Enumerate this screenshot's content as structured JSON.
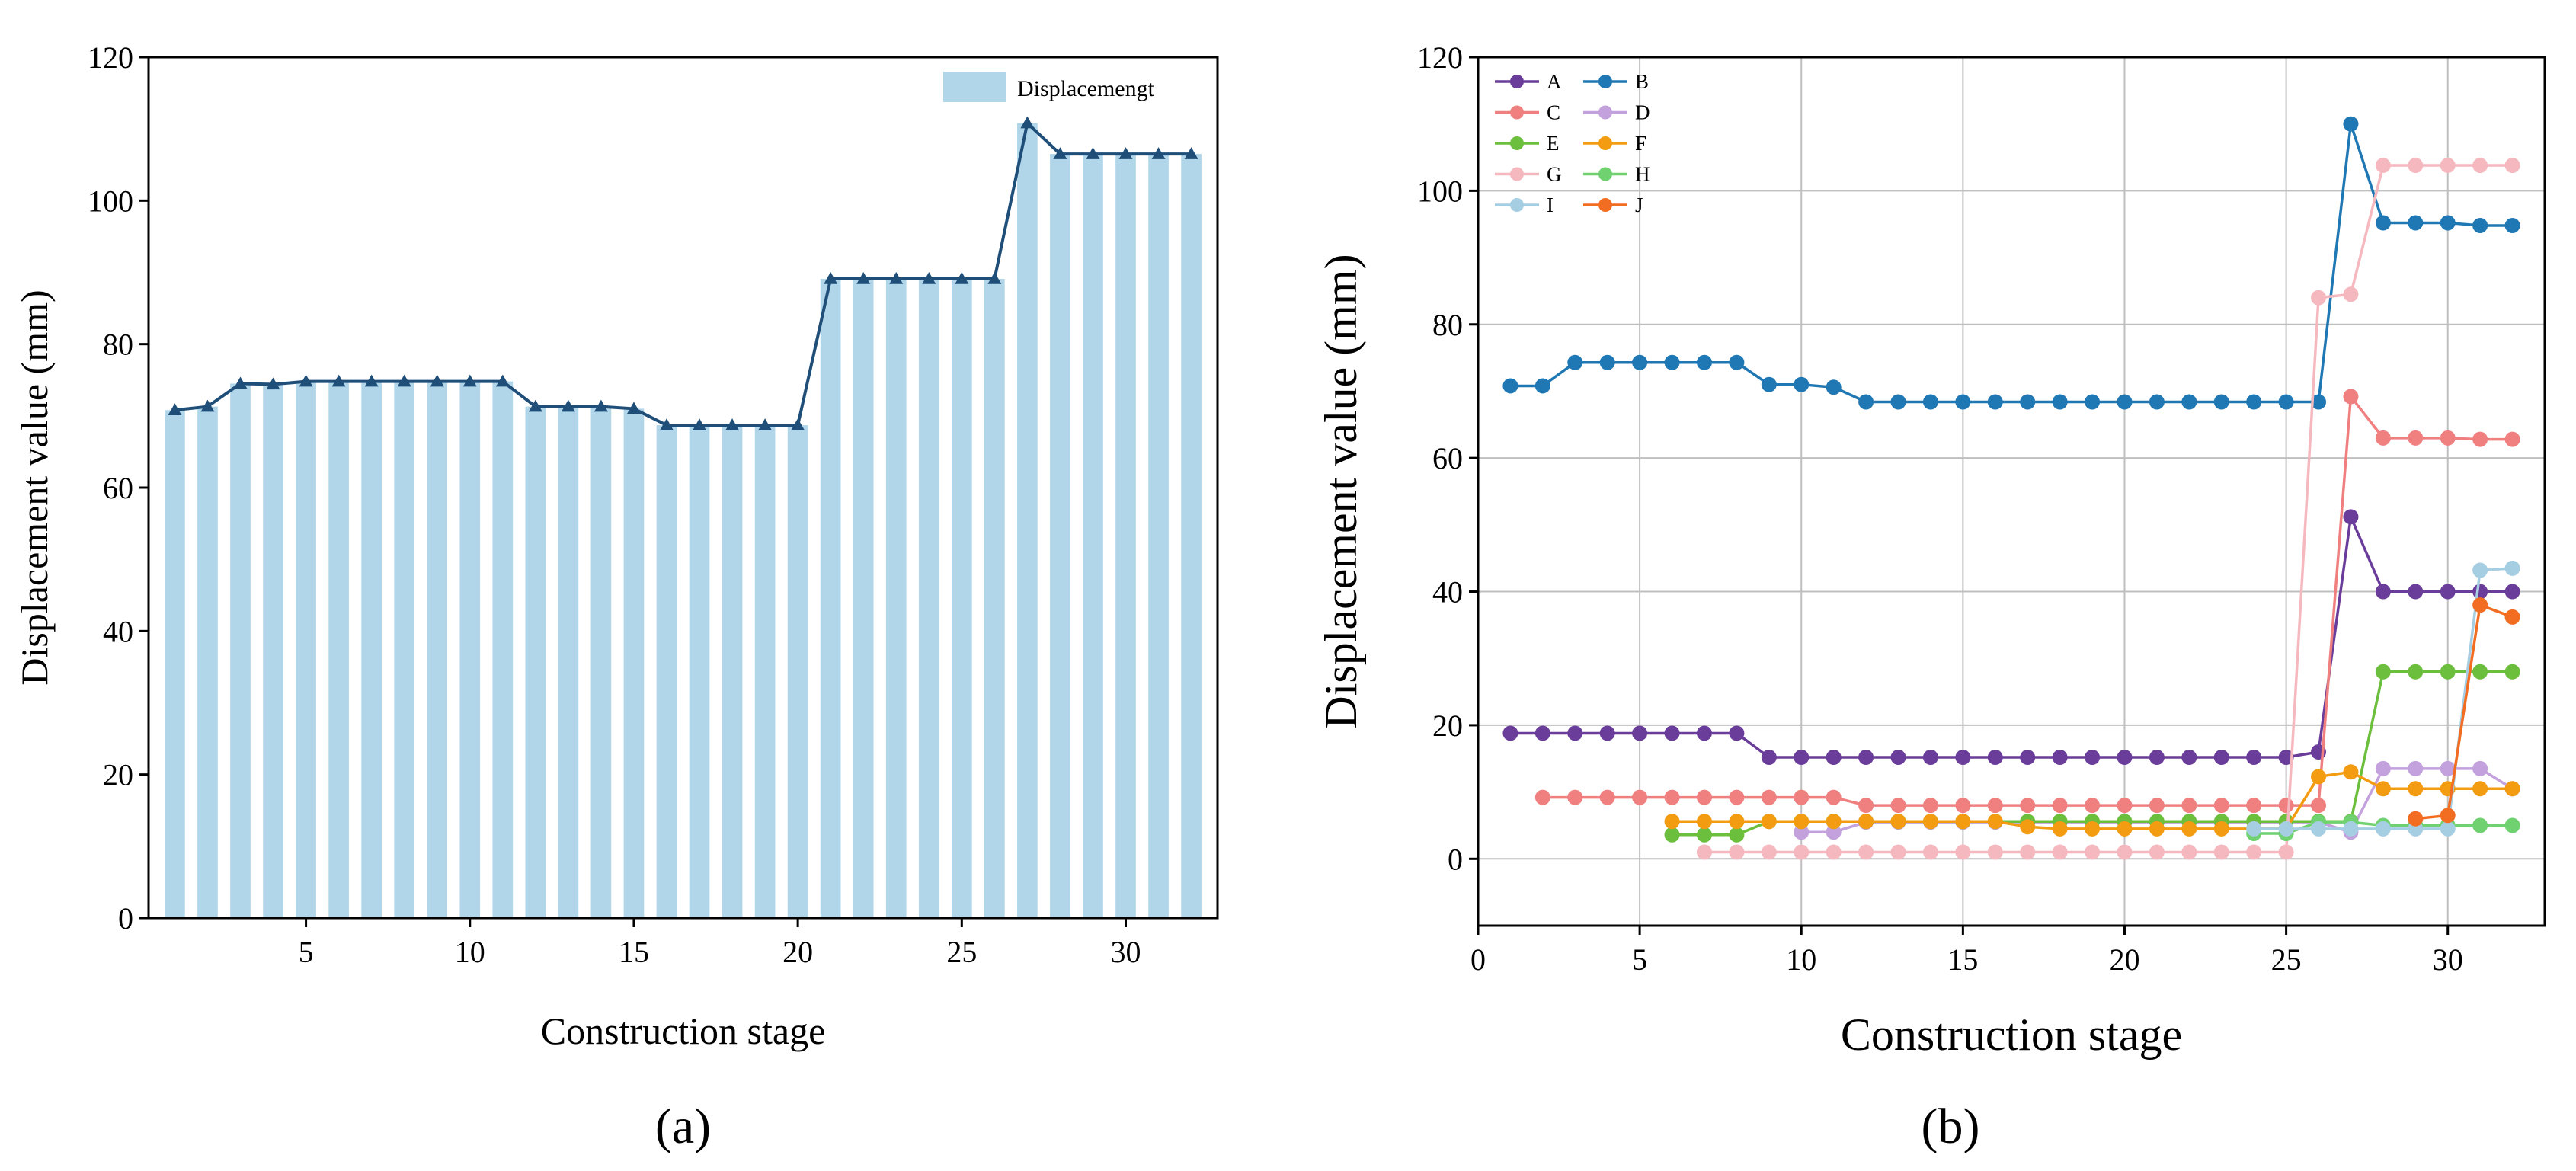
{
  "chart_data": [
    {
      "type": "bar",
      "panel_label": "(a)",
      "xlabel": "Construction stage",
      "ylabel": "Displacement value (mm)",
      "ylim": [
        0,
        120
      ],
      "xlim": [
        0.2,
        32.8
      ],
      "yticks": [
        "0",
        "20",
        "40",
        "60",
        "80",
        "100",
        "120"
      ],
      "xticks": [
        "5",
        "10",
        "15",
        "20",
        "25",
        "30"
      ],
      "legend": [
        "Displacemengt"
      ],
      "legend_position": "top-right",
      "bar_color": "#b1d6ea",
      "line_color": "#1f4e79",
      "categories": [
        1,
        2,
        3,
        4,
        5,
        6,
        7,
        8,
        9,
        10,
        11,
        12,
        13,
        14,
        15,
        16,
        17,
        18,
        19,
        20,
        21,
        22,
        23,
        24,
        25,
        26,
        27,
        28,
        29,
        30,
        31,
        32
      ],
      "values": [
        70.8,
        71.3,
        74.5,
        74.4,
        74.8,
        74.8,
        74.8,
        74.8,
        74.8,
        74.8,
        74.8,
        71.3,
        71.3,
        71.3,
        71.0,
        68.7,
        68.7,
        68.7,
        68.7,
        68.7,
        89.1,
        89.1,
        89.1,
        89.1,
        89.1,
        89.1,
        110.8,
        106.5,
        106.5,
        106.5,
        106.5,
        106.5
      ]
    },
    {
      "type": "line",
      "panel_label": "(b)",
      "xlabel": "Construction stage",
      "ylabel": "Displacement value (mm)",
      "ylim": [
        -10,
        120
      ],
      "xlim": [
        0,
        33
      ],
      "grid": true,
      "yticks": [
        "0",
        "20",
        "40",
        "60",
        "80",
        "100",
        "120"
      ],
      "xticks": [
        "0",
        "5",
        "10",
        "15",
        "20",
        "25",
        "30"
      ],
      "legend_position": "top-left",
      "series": [
        {
          "name": "A",
          "color": "#6a3d9a",
          "x": [
            1,
            2,
            3,
            4,
            5,
            6,
            7,
            8,
            9,
            10,
            11,
            12,
            13,
            14,
            15,
            16,
            17,
            18,
            19,
            20,
            21,
            22,
            23,
            24,
            25,
            26,
            27,
            28,
            29,
            30,
            31,
            32
          ],
          "values": [
            18.8,
            18.8,
            18.8,
            18.8,
            18.8,
            18.8,
            18.8,
            18.8,
            15.2,
            15.2,
            15.2,
            15.2,
            15.2,
            15.2,
            15.2,
            15.2,
            15.2,
            15.2,
            15.2,
            15.2,
            15.2,
            15.2,
            15.2,
            15.2,
            15.2,
            16.0,
            51.2,
            40.0,
            40.0,
            40.0,
            40.0,
            40.0
          ]
        },
        {
          "name": "B",
          "color": "#1f78b4",
          "x": [
            1,
            2,
            3,
            4,
            5,
            6,
            7,
            8,
            9,
            10,
            11,
            12,
            13,
            14,
            15,
            16,
            17,
            18,
            19,
            20,
            21,
            22,
            23,
            24,
            25,
            26,
            27,
            28,
            29,
            30,
            31,
            32
          ],
          "values": [
            70.8,
            70.8,
            74.3,
            74.3,
            74.3,
            74.3,
            74.3,
            74.3,
            71.0,
            71.0,
            70.6,
            68.4,
            68.4,
            68.4,
            68.4,
            68.4,
            68.4,
            68.4,
            68.4,
            68.4,
            68.4,
            68.4,
            68.4,
            68.4,
            68.4,
            68.4,
            110.0,
            95.2,
            95.2,
            95.2,
            94.8,
            94.8
          ]
        },
        {
          "name": "C",
          "color": "#f08080",
          "x": [
            2,
            3,
            4,
            5,
            6,
            7,
            8,
            9,
            10,
            11,
            12,
            13,
            14,
            15,
            16,
            17,
            18,
            19,
            20,
            21,
            22,
            23,
            24,
            25,
            26,
            27,
            28,
            29,
            30,
            31,
            32
          ],
          "values": [
            9.2,
            9.2,
            9.2,
            9.2,
            9.2,
            9.2,
            9.2,
            9.2,
            9.2,
            9.2,
            8.0,
            8.0,
            8.0,
            8.0,
            8.0,
            8.0,
            8.0,
            8.0,
            8.0,
            8.0,
            8.0,
            8.0,
            8.0,
            8.0,
            8.0,
            69.2,
            63.0,
            63.0,
            63.0,
            62.8,
            62.8
          ]
        },
        {
          "name": "D",
          "color": "#c3a1dc",
          "x": [
            10,
            11,
            12,
            13,
            14,
            15,
            16,
            17,
            18,
            19,
            20,
            21,
            22,
            23,
            24,
            25,
            26,
            27,
            28,
            29,
            30,
            31,
            32
          ],
          "values": [
            4.0,
            4.0,
            5.5,
            5.5,
            5.5,
            5.5,
            5.5,
            5.5,
            5.5,
            5.5,
            5.5,
            5.5,
            5.5,
            5.5,
            5.5,
            5.5,
            5.5,
            4.0,
            13.5,
            13.5,
            13.5,
            13.5,
            10.5
          ]
        },
        {
          "name": "E",
          "color": "#6cbf3c",
          "x": [
            6,
            7,
            8,
            9,
            10,
            11,
            12,
            13,
            14,
            15,
            16,
            17,
            18,
            19,
            20,
            21,
            22,
            23,
            24,
            25,
            26,
            27,
            28,
            29,
            30,
            31,
            32
          ],
          "values": [
            3.6,
            3.6,
            3.6,
            5.6,
            5.6,
            5.6,
            5.6,
            5.6,
            5.6,
            5.6,
            5.6,
            5.6,
            5.6,
            5.6,
            5.6,
            5.6,
            5.6,
            5.6,
            5.6,
            5.6,
            5.6,
            5.6,
            28.0,
            28.0,
            28.0,
            28.0,
            28.0
          ]
        },
        {
          "name": "F",
          "color": "#f39c12",
          "x": [
            6,
            7,
            8,
            9,
            10,
            11,
            12,
            13,
            14,
            15,
            16,
            17,
            18,
            19,
            20,
            21,
            22,
            23,
            24,
            25,
            26,
            27,
            28,
            29,
            30,
            31,
            32
          ],
          "values": [
            5.6,
            5.6,
            5.6,
            5.6,
            5.6,
            5.6,
            5.6,
            5.6,
            5.6,
            5.6,
            5.6,
            4.8,
            4.5,
            4.5,
            4.5,
            4.5,
            4.5,
            4.5,
            4.5,
            4.5,
            12.3,
            13.0,
            10.5,
            10.5,
            10.5,
            10.5,
            10.5
          ]
        },
        {
          "name": "G",
          "color": "#f6b8bf",
          "x": [
            7,
            8,
            9,
            10,
            11,
            12,
            13,
            14,
            15,
            16,
            17,
            18,
            19,
            20,
            21,
            22,
            23,
            24,
            25,
            26,
            27,
            28,
            29,
            30,
            31,
            32
          ],
          "values": [
            1.0,
            1.0,
            1.0,
            1.0,
            1.0,
            1.0,
            1.0,
            1.0,
            1.0,
            1.0,
            1.0,
            1.0,
            1.0,
            1.0,
            1.0,
            1.0,
            1.0,
            1.0,
            1.0,
            84.0,
            84.5,
            103.8,
            103.8,
            103.8,
            103.8,
            103.8
          ]
        },
        {
          "name": "H",
          "color": "#6fd16f",
          "x": [
            24,
            25,
            26,
            27,
            28,
            29,
            30,
            31,
            32
          ],
          "values": [
            3.8,
            3.8,
            5.5,
            5.5,
            5.0,
            5.0,
            5.0,
            5.0,
            5.0
          ]
        },
        {
          "name": "I",
          "color": "#a6cee3",
          "x": [
            24,
            25,
            26,
            27,
            28,
            29,
            30,
            31,
            32
          ],
          "values": [
            4.5,
            4.5,
            4.5,
            4.5,
            4.5,
            4.5,
            4.5,
            43.2,
            43.5
          ]
        },
        {
          "name": "J",
          "color": "#f26d21",
          "x": [
            29,
            30,
            31,
            32
          ],
          "values": [
            6.0,
            6.5,
            38.0,
            36.2
          ]
        }
      ]
    }
  ]
}
